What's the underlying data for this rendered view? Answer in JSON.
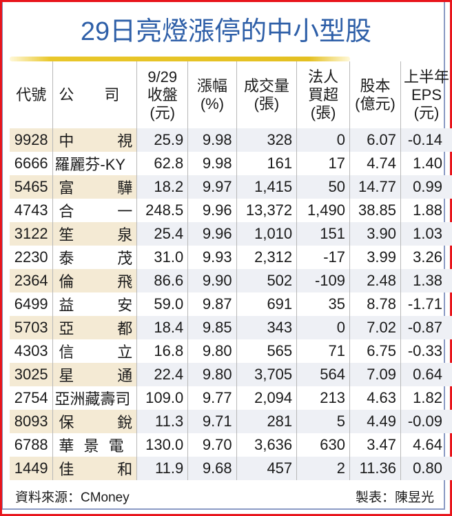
{
  "title": "29日亮燈漲停的中小型股",
  "colors": {
    "title": "#2e5fa8",
    "accent_line": "#e4c021",
    "row_highlight": "#f4ead4",
    "row_alt": "#eef0f5",
    "frame": "#e8141b"
  },
  "headers": [
    [
      "代號"
    ],
    [
      "公　　司"
    ],
    [
      "9/29",
      "收盤",
      "(元)"
    ],
    [
      "漲幅",
      "(%)"
    ],
    [
      "成交量",
      "(張)"
    ],
    [
      "法人",
      "買超",
      "(張)"
    ],
    [
      "股本",
      "(億元)"
    ],
    [
      "上半年",
      "EPS",
      "(元)"
    ]
  ],
  "rows": [
    {
      "code": "9928",
      "name_l": "中",
      "name_r": "視",
      "close": "25.9",
      "chg": "9.98",
      "vol": "328",
      "inst": "0",
      "cap": "6.07",
      "eps": "-0.14"
    },
    {
      "code": "6666",
      "name_l": "羅麗芬-KY",
      "name_r": "",
      "close": "62.8",
      "chg": "9.98",
      "vol": "161",
      "inst": "17",
      "cap": "4.74",
      "eps": "1.40"
    },
    {
      "code": "5465",
      "name_l": "富",
      "name_r": "驊",
      "close": "18.2",
      "chg": "9.97",
      "vol": "1,415",
      "inst": "50",
      "cap": "14.77",
      "eps": "0.99"
    },
    {
      "code": "4743",
      "name_l": "合",
      "name_r": "一",
      "close": "248.5",
      "chg": "9.96",
      "vol": "13,372",
      "inst": "1,490",
      "cap": "38.85",
      "eps": "1.88"
    },
    {
      "code": "3122",
      "name_l": "笙",
      "name_r": "泉",
      "close": "25.4",
      "chg": "9.96",
      "vol": "1,010",
      "inst": "151",
      "cap": "3.90",
      "eps": "1.03"
    },
    {
      "code": "2230",
      "name_l": "泰",
      "name_r": "茂",
      "close": "31.0",
      "chg": "9.93",
      "vol": "2,312",
      "inst": "-17",
      "cap": "3.99",
      "eps": "3.26"
    },
    {
      "code": "2364",
      "name_l": "倫",
      "name_r": "飛",
      "close": "86.6",
      "chg": "9.90",
      "vol": "502",
      "inst": "-109",
      "cap": "2.48",
      "eps": "1.38"
    },
    {
      "code": "6499",
      "name_l": "益",
      "name_r": "安",
      "close": "59.0",
      "chg": "9.87",
      "vol": "691",
      "inst": "35",
      "cap": "8.78",
      "eps": "-1.71"
    },
    {
      "code": "5703",
      "name_l": "亞",
      "name_r": "都",
      "close": "18.4",
      "chg": "9.85",
      "vol": "343",
      "inst": "0",
      "cap": "7.02",
      "eps": "-0.87"
    },
    {
      "code": "4303",
      "name_l": "信",
      "name_r": "立",
      "close": "16.8",
      "chg": "9.80",
      "vol": "565",
      "inst": "71",
      "cap": "6.75",
      "eps": "-0.33"
    },
    {
      "code": "3025",
      "name_l": "星",
      "name_r": "通",
      "close": "22.4",
      "chg": "9.80",
      "vol": "3,705",
      "inst": "564",
      "cap": "7.09",
      "eps": "0.64"
    },
    {
      "code": "2754",
      "name_l": "亞洲藏壽司",
      "name_r": "",
      "close": "109.0",
      "chg": "9.77",
      "vol": "2,094",
      "inst": "213",
      "cap": "4.63",
      "eps": "1.82"
    },
    {
      "code": "8093",
      "name_l": "保",
      "name_r": "銳",
      "close": "11.3",
      "chg": "9.71",
      "vol": "281",
      "inst": "5",
      "cap": "4.49",
      "eps": "-0.09"
    },
    {
      "code": "6788",
      "name_l": "華 景 電",
      "name_r": "",
      "close": "130.0",
      "chg": "9.70",
      "vol": "3,636",
      "inst": "630",
      "cap": "3.47",
      "eps": "4.64"
    },
    {
      "code": "1449",
      "name_l": "佳",
      "name_r": "和",
      "close": "11.9",
      "chg": "9.68",
      "vol": "457",
      "inst": "2",
      "cap": "11.36",
      "eps": "0.80"
    }
  ],
  "footer": {
    "source": "資料來源：CMoney",
    "author": "製表：陳昱光"
  }
}
